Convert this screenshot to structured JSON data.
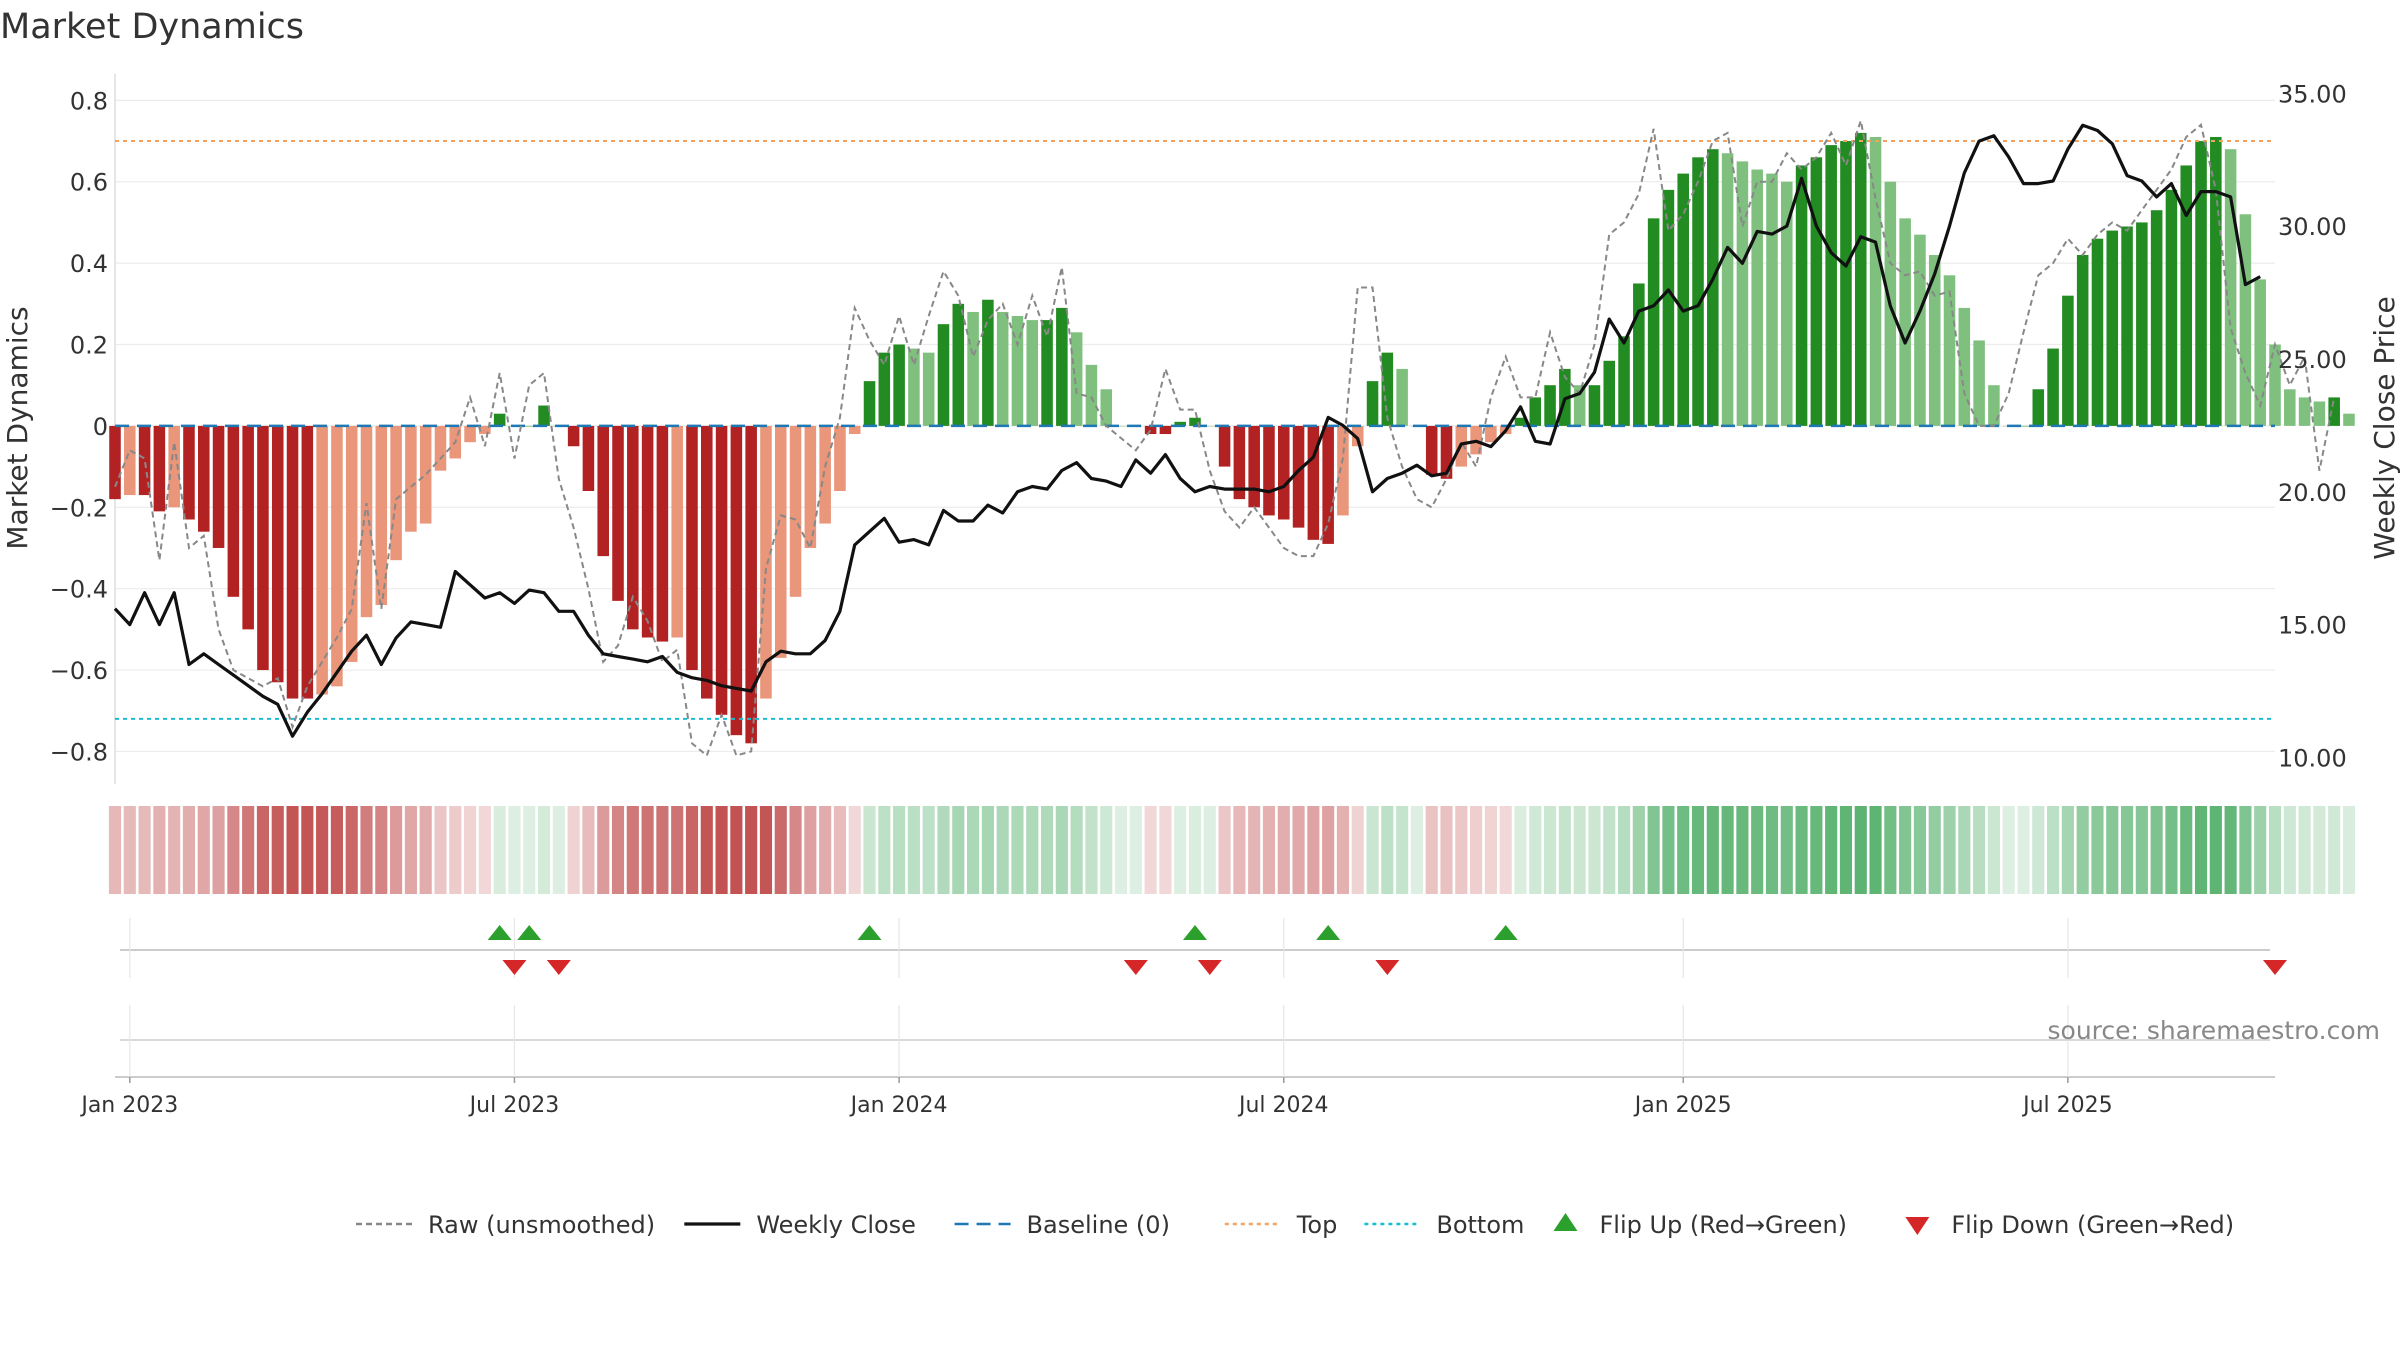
{
  "chart_data": {
    "type": "bar",
    "title": "Market Dynamics",
    "ylabel_left": "Market Dynamics",
    "ylabel_right": "Weekly Close Price",
    "ylim_left": [
      -0.88,
      0.85
    ],
    "ylim_right": [
      9.0,
      35.5
    ],
    "xlim": [
      "2022-12-26",
      "2025-10-13"
    ],
    "y_ticks_left": [
      "0.8",
      "0.6",
      "0.4",
      "0.2",
      "0",
      "−0.2",
      "−0.4",
      "−0.6",
      "−0.8"
    ],
    "y_ticks_right": [
      "35.00",
      "30.00",
      "25.00",
      "20.00",
      "15.00",
      "10.00"
    ],
    "x_ticks": [
      {
        "date": "2023-01-02",
        "label": "Jan 2023"
      },
      {
        "date": "2023-07-03",
        "label": "Jul 2023"
      },
      {
        "date": "2024-01-01",
        "label": "Jan 2024"
      },
      {
        "date": "2024-07-01",
        "label": "Jul 2024"
      },
      {
        "date": "2025-01-06",
        "label": "Jan 2025"
      },
      {
        "date": "2025-07-07",
        "label": "Jul 2025"
      }
    ],
    "reference_lines": {
      "baseline": {
        "label": "Baseline (0)",
        "value": 0,
        "color": "#1f77b4"
      },
      "top": {
        "label": "Top",
        "value": 0.7,
        "color": "#f4a261"
      },
      "bottom": {
        "label": "Bottom",
        "value": -0.72,
        "color": "#17becf"
      }
    },
    "colors": {
      "strong_red": "#b22222",
      "light_red": "#e9967a",
      "strong_green": "#228b22",
      "light_green": "#7fc07f",
      "raw_line": "#888888",
      "close_line": "#111111",
      "flip_up": "#2ca02c",
      "flip_down": "#d62728"
    },
    "weeks_start": "2022-12-26",
    "week_interval_days": 7,
    "smoothed": [
      -0.18,
      -0.17,
      -0.17,
      -0.21,
      -0.2,
      -0.23,
      -0.26,
      -0.3,
      -0.42,
      -0.5,
      -0.6,
      -0.63,
      -0.67,
      -0.67,
      -0.66,
      -0.64,
      -0.58,
      -0.47,
      -0.44,
      -0.33,
      -0.26,
      -0.24,
      -0.11,
      -0.08,
      -0.04,
      -0.02,
      0.03,
      0.0,
      0.0,
      0.05,
      0.0,
      -0.05,
      -0.16,
      -0.32,
      -0.43,
      -0.5,
      -0.52,
      -0.53,
      -0.52,
      -0.6,
      -0.67,
      -0.71,
      -0.76,
      -0.78,
      -0.67,
      -0.57,
      -0.42,
      -0.3,
      -0.24,
      -0.16,
      -0.02,
      0.11,
      0.18,
      0.2,
      0.19,
      0.18,
      0.25,
      0.3,
      0.28,
      0.31,
      0.28,
      0.27,
      0.26,
      0.26,
      0.29,
      0.23,
      0.15,
      0.09,
      0.0,
      0.0,
      -0.02,
      -0.02,
      0.01,
      0.02,
      0.0,
      -0.1,
      -0.18,
      -0.2,
      -0.22,
      -0.23,
      -0.25,
      -0.28,
      -0.29,
      -0.22,
      -0.05,
      0.11,
      0.18,
      0.14,
      0.0,
      -0.12,
      -0.13,
      -0.1,
      -0.07,
      -0.04,
      -0.02,
      0.02,
      0.07,
      0.1,
      0.14,
      0.1,
      0.1,
      0.16,
      0.22,
      0.35,
      0.51,
      0.58,
      0.62,
      0.66,
      0.68,
      0.67,
      0.65,
      0.63,
      0.62,
      0.6,
      0.64,
      0.66,
      0.69,
      0.7,
      0.72,
      0.71,
      0.6,
      0.51,
      0.47,
      0.42,
      0.37,
      0.29,
      0.21,
      0.1,
      0.0,
      0.0,
      0.09,
      0.19,
      0.32,
      0.42,
      0.46,
      0.48,
      0.49,
      0.5,
      0.53,
      0.58,
      0.64,
      0.7,
      0.71,
      0.68,
      0.52,
      0.36,
      0.2,
      0.09,
      0.07,
      0.06,
      0.07,
      0.03
    ],
    "raw": [
      -0.15,
      -0.06,
      -0.08,
      -0.33,
      -0.04,
      -0.3,
      -0.27,
      -0.5,
      -0.6,
      -0.62,
      -0.64,
      -0.62,
      -0.74,
      -0.64,
      -0.58,
      -0.52,
      -0.45,
      -0.19,
      -0.45,
      -0.18,
      -0.15,
      -0.12,
      -0.08,
      -0.04,
      0.07,
      -0.05,
      0.13,
      -0.08,
      0.1,
      0.13,
      -0.13,
      -0.25,
      -0.4,
      -0.58,
      -0.54,
      -0.42,
      -0.48,
      -0.58,
      -0.55,
      -0.78,
      -0.81,
      -0.71,
      -0.81,
      -0.8,
      -0.35,
      -0.22,
      -0.23,
      -0.3,
      -0.1,
      0.02,
      0.29,
      0.21,
      0.15,
      0.27,
      0.15,
      0.27,
      0.38,
      0.32,
      0.17,
      0.26,
      0.3,
      0.2,
      0.32,
      0.22,
      0.39,
      0.08,
      0.07,
      0.0,
      -0.03,
      -0.06,
      -0.01,
      0.14,
      0.04,
      0.04,
      -0.11,
      -0.21,
      -0.25,
      -0.2,
      -0.25,
      -0.3,
      -0.32,
      -0.32,
      -0.24,
      -0.08,
      0.34,
      0.34,
      0.02,
      -0.1,
      -0.18,
      -0.2,
      -0.13,
      -0.04,
      -0.1,
      0.07,
      0.17,
      0.07,
      0.07,
      0.23,
      0.12,
      0.08,
      0.2,
      0.47,
      0.5,
      0.57,
      0.73,
      0.48,
      0.52,
      0.6,
      0.7,
      0.72,
      0.49,
      0.6,
      0.6,
      0.67,
      0.63,
      0.66,
      0.72,
      0.64,
      0.75,
      0.56,
      0.4,
      0.37,
      0.38,
      0.32,
      0.33,
      0.08,
      0.0,
      0.0,
      0.08,
      0.23,
      0.37,
      0.4,
      0.46,
      0.42,
      0.47,
      0.5,
      0.48,
      0.53,
      0.58,
      0.63,
      0.71,
      0.74,
      0.58,
      0.24,
      0.13,
      0.05,
      0.2,
      0.1,
      0.17,
      -0.11,
      0.07
    ],
    "close": [
      15.6,
      15.0,
      16.2,
      15.0,
      16.2,
      13.5,
      13.9,
      13.5,
      13.1,
      12.7,
      12.3,
      12.0,
      10.8,
      11.7,
      12.4,
      13.2,
      14.0,
      14.6,
      13.5,
      14.5,
      15.1,
      15.0,
      14.9,
      17.0,
      16.5,
      16.0,
      16.2,
      15.8,
      16.3,
      16.2,
      15.5,
      15.5,
      14.6,
      13.9,
      13.8,
      13.7,
      13.6,
      13.8,
      13.2,
      13.0,
      12.9,
      12.7,
      12.6,
      12.5,
      13.6,
      14.0,
      13.9,
      13.9,
      14.4,
      15.5,
      18.0,
      18.5,
      19.0,
      18.1,
      18.2,
      18.0,
      19.3,
      18.9,
      18.9,
      19.5,
      19.2,
      20.0,
      20.2,
      20.1,
      20.8,
      21.1,
      20.5,
      20.4,
      20.2,
      21.2,
      20.7,
      21.4,
      20.5,
      20.0,
      20.2,
      20.1,
      20.1,
      20.1,
      20.0,
      20.2,
      20.8,
      21.3,
      22.8,
      22.5,
      22.0,
      20.0,
      20.5,
      20.7,
      21.0,
      20.6,
      20.7,
      21.8,
      21.9,
      21.7,
      22.3,
      23.2,
      21.9,
      21.8,
      23.5,
      23.7,
      24.5,
      26.5,
      25.6,
      26.8,
      27.0,
      27.6,
      26.8,
      27.0,
      28.0,
      29.2,
      28.6,
      29.8,
      29.7,
      30.0,
      31.8,
      30.0,
      29.0,
      28.5,
      29.6,
      29.4,
      27.0,
      25.6,
      26.8,
      28.2,
      30.0,
      32.0,
      33.2,
      33.4,
      32.6,
      31.6,
      31.6,
      31.7,
      32.9,
      33.8,
      33.6,
      33.1,
      31.9,
      31.7,
      31.1,
      31.6,
      30.4,
      31.3,
      31.3,
      31.1,
      27.8,
      28.1
    ],
    "heat_ribbon": [
      0.26,
      0.25,
      0.25,
      0.31,
      0.3,
      0.34,
      0.38,
      0.44,
      0.61,
      0.73,
      0.87,
      0.92,
      0.98,
      0.98,
      0.96,
      0.93,
      0.85,
      0.69,
      0.64,
      0.48,
      0.38,
      0.35,
      0.16,
      0.12,
      0.06,
      0.03,
      0.04,
      0.0,
      0.0,
      0.07,
      0.0,
      0.07,
      0.23,
      0.47,
      0.63,
      0.73,
      0.76,
      0.77,
      0.76,
      0.87,
      0.98,
      1.0,
      1.0,
      1.0,
      0.98,
      0.83,
      0.61,
      0.44,
      0.35,
      0.23,
      0.03,
      0.15,
      0.25,
      0.28,
      0.27,
      0.25,
      0.35,
      0.42,
      0.39,
      0.43,
      0.39,
      0.38,
      0.36,
      0.36,
      0.4,
      0.32,
      0.21,
      0.13,
      0.0,
      0.0,
      0.03,
      0.03,
      0.01,
      0.03,
      0.0,
      0.15,
      0.26,
      0.29,
      0.32,
      0.34,
      0.37,
      0.41,
      0.42,
      0.32,
      0.07,
      0.15,
      0.25,
      0.19,
      0.0,
      0.18,
      0.19,
      0.15,
      0.1,
      0.06,
      0.03,
      0.03,
      0.1,
      0.14,
      0.19,
      0.14,
      0.14,
      0.22,
      0.31,
      0.49,
      0.71,
      0.81,
      0.86,
      0.92,
      0.94,
      0.93,
      0.9,
      0.88,
      0.86,
      0.83,
      0.89,
      0.92,
      0.96,
      0.97,
      1.0,
      0.99,
      0.83,
      0.71,
      0.65,
      0.58,
      0.51,
      0.4,
      0.29,
      0.14,
      0.0,
      0.0,
      0.13,
      0.26,
      0.44,
      0.58,
      0.64,
      0.67,
      0.68,
      0.69,
      0.74,
      0.81,
      0.89,
      0.97,
      0.99,
      0.94,
      0.72,
      0.5,
      0.28,
      0.13,
      0.1,
      0.08,
      0.1,
      0.04
    ],
    "flips": {
      "up": [
        "2023-06-26",
        "2023-07-10",
        "2023-12-18",
        "2024-05-20",
        "2024-07-22",
        "2024-10-14"
      ],
      "down": [
        "2023-07-03",
        "2023-07-24",
        "2024-04-22",
        "2024-05-27",
        "2024-08-19",
        "2025-10-13"
      ]
    },
    "legend": [
      {
        "label": "Raw (unsmoothed)",
        "kind": "line-dashed",
        "color": "#888888"
      },
      {
        "label": "Weekly Close",
        "kind": "line",
        "color": "#111111"
      },
      {
        "label": "Baseline (0)",
        "kind": "line-longdash",
        "color": "#1f77b4"
      },
      {
        "label": "Top",
        "kind": "line-dotted",
        "color": "#f4a261"
      },
      {
        "label": "Bottom",
        "kind": "line-dotted",
        "color": "#17becf"
      },
      {
        "label": "Flip Up (Red→Green)",
        "kind": "tri-up",
        "color": "#2ca02c"
      },
      {
        "label": "Flip Down (Green→Red)",
        "kind": "tri-down",
        "color": "#d62728"
      }
    ],
    "legend_placement": "bottom-center",
    "grid": true
  },
  "watermark": "source: sharemaestro.com"
}
